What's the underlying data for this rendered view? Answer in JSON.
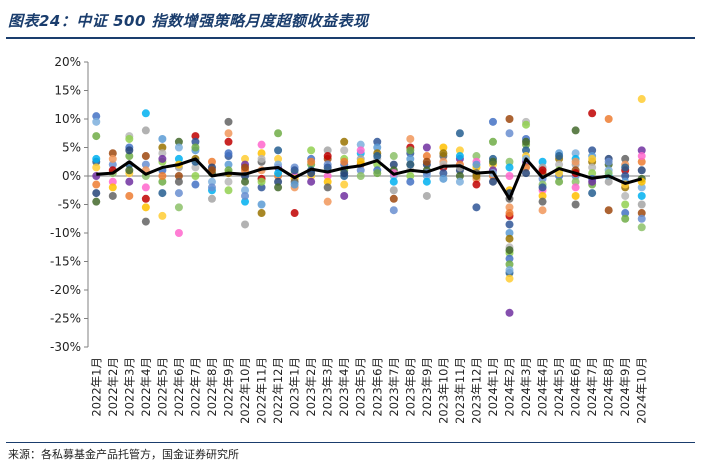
{
  "title": "图表24：中证 500 指数增强策略月度超额收益表现",
  "source": "来源：各私募基金产品托管方，国金证券研究所",
  "chart_data": {
    "type": "scatter",
    "title": "",
    "xlabel": "",
    "ylabel": "",
    "ylim": [
      -30,
      20
    ],
    "yticks": [
      "20%",
      "15%",
      "10%",
      "5%",
      "0%",
      "-5%",
      "-10%",
      "-15%",
      "-20%",
      "-25%",
      "-30%"
    ],
    "grid": false,
    "legend": "none",
    "categories": [
      "2022年1月",
      "2022年2月",
      "2022年3月",
      "2022年4月",
      "2022年5月",
      "2022年6月",
      "2022年7月",
      "2022年8月",
      "2022年9月",
      "2022年10月",
      "2022年11月",
      "2022年12月",
      "2023年1月",
      "2023年2月",
      "2023年3月",
      "2023年4月",
      "2023年5月",
      "2023年6月",
      "2023年7月",
      "2023年8月",
      "2023年9月",
      "2023年10月",
      "2023年11月",
      "2023年12月",
      "2024年1月",
      "2024年2月",
      "2024年3月",
      "2024年4月",
      "2024年5月",
      "2024年6月",
      "2024年7月",
      "2024年8月",
      "2024年9月",
      "2024年10月"
    ],
    "average": [
      0.3,
      0.5,
      2.5,
      0.3,
      1.5,
      2.0,
      3.0,
      0.0,
      0.5,
      0.3,
      1.2,
      1.5,
      -0.3,
      1.2,
      0.7,
      1.4,
      1.8,
      2.7,
      0.3,
      1.0,
      0.7,
      1.7,
      1.8,
      0.5,
      0.7,
      -4.0,
      3.0,
      -0.3,
      1.3,
      0.5,
      -0.4,
      0.0,
      -1.3,
      -0.5
    ],
    "average_color": "#000000",
    "series": [
      {
        "values": [
          10.5,
          7.0,
          2.5,
          1.5,
          0.0,
          -1.5,
          -3.0,
          -4.5,
          9.5,
          3.0
        ]
      },
      {
        "values": [
          4.0,
          2.0,
          0.5,
          -1.0,
          -2.0,
          -3.5,
          3.0,
          1.0
        ]
      },
      {
        "values": [
          7.0,
          6.5,
          5.0,
          3.5,
          2.0,
          0.5,
          -1.0,
          -3.5,
          4.5,
          1.0
        ]
      },
      {
        "values": [
          11.0,
          8.0,
          3.5,
          2.0,
          0.0,
          -2.0,
          -5.5,
          -8.0,
          1.0,
          -4.0
        ]
      },
      {
        "values": [
          6.5,
          5.0,
          4.0,
          2.5,
          1.0,
          -1.0,
          -3.0,
          -7.0,
          3.0,
          0.0
        ]
      },
      {
        "values": [
          6.0,
          5.0,
          3.0,
          1.5,
          0.0,
          -3.0,
          -5.5,
          -10.0,
          2.0,
          -1.0
        ]
      },
      {
        "values": [
          7.0,
          6.0,
          4.5,
          3.0,
          1.5,
          0.0,
          -1.5,
          5.0,
          2.5
        ]
      },
      {
        "values": [
          2.5,
          1.5,
          0.5,
          -1.0,
          -2.5,
          -4.0,
          1.0,
          -2.0
        ]
      },
      {
        "values": [
          9.5,
          7.5,
          6.0,
          3.5,
          2.0,
          0.5,
          -1.0,
          -2.5,
          4.0,
          1.0
        ]
      },
      {
        "values": [
          3.0,
          2.0,
          1.0,
          0.0,
          -1.0,
          -2.5,
          -4.5,
          -8.5,
          1.5,
          -3.5
        ]
      },
      {
        "values": [
          5.5,
          4.0,
          2.5,
          1.0,
          -0.5,
          -2.0,
          -5.0,
          -6.5,
          3.0,
          -1.0
        ]
      },
      {
        "values": [
          7.5,
          4.5,
          3.0,
          1.5,
          0.0,
          -1.0,
          -2.0,
          2.0,
          0.5
        ]
      },
      {
        "values": [
          1.5,
          0.5,
          0.0,
          -0.5,
          -1.0,
          -2.0,
          -6.5,
          1.0,
          -1.5
        ]
      },
      {
        "values": [
          4.5,
          3.0,
          2.0,
          1.0,
          0.0,
          -1.0,
          2.5,
          0.5
        ]
      },
      {
        "values": [
          4.5,
          3.0,
          2.0,
          1.0,
          0.0,
          -1.0,
          -2.0,
          -4.5,
          3.5,
          1.5
        ]
      },
      {
        "values": [
          6.0,
          4.5,
          3.0,
          2.0,
          1.0,
          0.0,
          -1.5,
          -3.5,
          2.5,
          0.5
        ]
      },
      {
        "values": [
          5.5,
          4.0,
          3.0,
          2.0,
          1.0,
          0.0,
          4.5,
          2.5
        ]
      },
      {
        "values": [
          6.0,
          5.0,
          4.0,
          3.0,
          2.0,
          1.0,
          0.5,
          3.5
        ]
      },
      {
        "values": [
          2.0,
          1.0,
          0.0,
          -1.0,
          -2.5,
          -4.0,
          -6.0,
          3.5,
          0.5
        ]
      },
      {
        "values": [
          6.5,
          5.0,
          4.0,
          3.0,
          2.0,
          1.0,
          0.0,
          -1.0,
          4.5,
          2.0
        ]
      },
      {
        "values": [
          5.0,
          3.5,
          2.0,
          1.0,
          0.0,
          -1.0,
          -3.5,
          2.5,
          0.5
        ]
      },
      {
        "values": [
          5.0,
          3.5,
          2.5,
          1.5,
          0.5,
          -0.5,
          4.0,
          2.0
        ]
      },
      {
        "values": [
          7.5,
          4.5,
          3.0,
          2.0,
          1.0,
          0.0,
          -1.0,
          3.5,
          1.5
        ]
      },
      {
        "values": [
          3.5,
          2.5,
          1.5,
          0.5,
          -0.5,
          -1.5,
          -5.5,
          2.0,
          0.0
        ]
      },
      {
        "values": [
          9.5,
          6.0,
          3.0,
          2.0,
          1.0,
          0.0,
          -1.0,
          2.5,
          0.5
        ]
      },
      {
        "values": [
          10.0,
          7.5,
          2.5,
          0.0,
          -2.5,
          -4.0,
          -5.5,
          -7.0,
          -8.5,
          -10.0,
          -11.0,
          -12.5,
          -13.5,
          -14.5,
          -15.5,
          -17.0,
          -18.0,
          -24.0,
          -6.5,
          -3.0,
          -13.0,
          -16.5,
          1.5
        ]
      },
      {
        "values": [
          9.5,
          9.0,
          6.5,
          5.5,
          4.5,
          3.5,
          2.5,
          1.5,
          0.5,
          6.0,
          3.0
        ]
      },
      {
        "values": [
          2.5,
          1.5,
          0.5,
          -0.5,
          -1.5,
          -2.5,
          -3.5,
          -4.5,
          -6.0,
          1.0,
          -2.0
        ]
      },
      {
        "values": [
          4.0,
          3.0,
          2.0,
          1.0,
          0.0,
          -1.0,
          3.5,
          0.5
        ]
      },
      {
        "values": [
          8.0,
          4.0,
          3.0,
          2.0,
          1.0,
          0.0,
          -1.0,
          -2.0,
          -3.5,
          -5.0,
          2.5,
          0.5
        ]
      },
      {
        "values": [
          11.0,
          4.5,
          3.5,
          2.5,
          1.5,
          0.5,
          -0.5,
          -1.5,
          -3.0,
          3.0,
          -1.0
        ]
      },
      {
        "values": [
          10.0,
          3.0,
          2.0,
          1.0,
          0.0,
          -1.0,
          -6.0,
          2.5,
          0.5
        ]
      },
      {
        "values": [
          3.0,
          2.0,
          1.0,
          0.0,
          -1.0,
          -2.0,
          -3.5,
          -5.0,
          -6.5,
          -7.5,
          1.5,
          -1.5
        ]
      },
      {
        "values": [
          13.5,
          4.5,
          2.5,
          1.0,
          -0.5,
          -2.0,
          -3.5,
          -5.0,
          -6.5,
          -7.5,
          -9.0,
          3.5,
          -1.0
        ]
      }
    ]
  }
}
